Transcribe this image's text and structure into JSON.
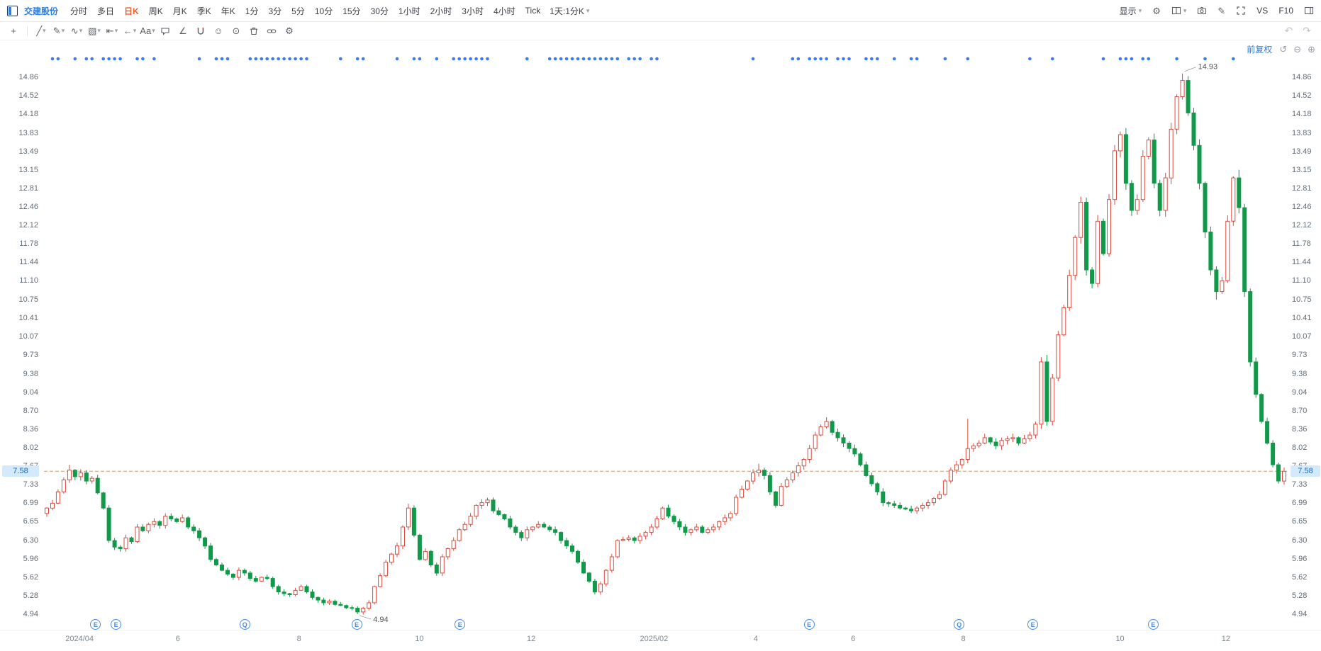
{
  "header": {
    "stock_name": "交建股份",
    "periods": [
      "分时",
      "多日",
      "日K",
      "周K",
      "月K",
      "季K",
      "年K",
      "1分",
      "3分",
      "5分",
      "10分",
      "15分",
      "30分",
      "1小时",
      "2小时",
      "3小时",
      "4小时",
      "Tick"
    ],
    "active_period": "日K",
    "compound_period": "1天:1分K",
    "right_items": [
      {
        "name": "display-dropdown",
        "label": "显示",
        "caret": true
      },
      {
        "name": "settings-icon",
        "glyph": "⚙"
      },
      {
        "name": "layout-icon",
        "glyph": "svg:layout",
        "caret": true
      },
      {
        "name": "screenshot-icon",
        "glyph": "svg:camera"
      },
      {
        "name": "draw-mode-icon",
        "glyph": "✎"
      },
      {
        "name": "fullscreen-icon",
        "glyph": "svg:expand"
      },
      {
        "name": "vs-button",
        "label": "VS"
      },
      {
        "name": "f10-button",
        "label": "F10"
      },
      {
        "name": "panel-toggle-icon",
        "glyph": "svg:panel"
      }
    ]
  },
  "draw_toolbar": {
    "icons": [
      {
        "name": "crosshair-move-tool",
        "glyph": "+"
      },
      {
        "name": "trendline-tool",
        "glyph": "╱",
        "caret": true
      },
      {
        "name": "brush-tool",
        "glyph": "✎",
        "caret": true
      },
      {
        "name": "wave-tool",
        "glyph": "∿",
        "caret": true
      },
      {
        "name": "pattern-tool",
        "glyph": "▧",
        "caret": true
      },
      {
        "name": "measure-tool",
        "glyph": "⇤",
        "caret": true
      },
      {
        "name": "arrow-tool",
        "glyph": "←",
        "caret": true
      },
      {
        "name": "text-tool",
        "glyph": "Aa",
        "caret": true
      },
      {
        "name": "comment-tool",
        "glyph": "svg:bubble"
      },
      {
        "name": "angle-tool",
        "glyph": "∠"
      },
      {
        "name": "magnet-tool",
        "glyph": "svg:magnet"
      },
      {
        "name": "emoji-tool",
        "glyph": "☺"
      },
      {
        "name": "target-tool",
        "glyph": "⊙"
      },
      {
        "name": "delete-tool",
        "glyph": "svg:trash"
      },
      {
        "name": "link-tool",
        "glyph": "svg:link"
      },
      {
        "name": "drawing-settings-tool",
        "glyph": "⚙"
      }
    ],
    "undo_glyph": "↶",
    "redo_glyph": "↷"
  },
  "chart": {
    "adjust_label": "前复权",
    "corner_icons": [
      {
        "name": "reset-view-icon",
        "glyph": "↺"
      },
      {
        "name": "zoom-out-icon",
        "glyph": "⊖"
      },
      {
        "name": "zoom-in-icon",
        "glyph": "⊕"
      }
    ],
    "colors": {
      "up": "#dd4b3e",
      "down": "#0f9948",
      "price_line": "#ff8d1e",
      "event_dot": "#3b7df0",
      "badge_bg": "#d3e9fc",
      "badge_text": "#1a66b5",
      "accent_blue": "#2e7de0",
      "active_tab": "#f25a2b",
      "annotation_text": "#555555"
    }
  },
  "chart_data": {
    "type": "candlestick",
    "title": "交建股份 日K (前复权)",
    "current_price": "7.58",
    "y_range": {
      "top_tick": 14.86,
      "bottom_tick": 4.94
    },
    "price_axis_ticks": [
      "14.86",
      "14.52",
      "14.18",
      "13.83",
      "13.49",
      "13.15",
      "12.81",
      "12.46",
      "12.12",
      "11.78",
      "11.44",
      "11.10",
      "10.75",
      "10.41",
      "10.07",
      "9.73",
      "9.38",
      "9.04",
      "8.70",
      "8.36",
      "8.02",
      "7.67",
      "7.33",
      "6.99",
      "6.65",
      "6.30",
      "5.96",
      "5.62",
      "5.28",
      "4.94"
    ],
    "time_axis_labels": [
      {
        "f": 0.0286,
        "text": "2024/04"
      },
      {
        "f": 0.1077,
        "text": "6"
      },
      {
        "f": 0.2052,
        "text": "8"
      },
      {
        "f": 0.302,
        "text": "10"
      },
      {
        "f": 0.392,
        "text": "12"
      },
      {
        "f": 0.4908,
        "text": "2025/02"
      },
      {
        "f": 0.5726,
        "text": "4"
      },
      {
        "f": 0.651,
        "text": "6"
      },
      {
        "f": 0.7396,
        "text": "8"
      },
      {
        "f": 0.8657,
        "text": "10"
      },
      {
        "f": 0.9509,
        "text": "12"
      }
    ],
    "first_open": 6.8,
    "closes": [
      6.9,
      6.99,
      7.2,
      7.42,
      7.6,
      7.48,
      7.55,
      7.4,
      7.45,
      7.18,
      6.9,
      6.3,
      6.18,
      6.15,
      6.35,
      6.28,
      6.55,
      6.48,
      6.6,
      6.65,
      6.58,
      6.75,
      6.7,
      6.65,
      6.72,
      6.55,
      6.48,
      6.35,
      6.2,
      5.95,
      5.85,
      5.75,
      5.68,
      5.62,
      5.75,
      5.7,
      5.6,
      5.55,
      5.62,
      5.6,
      5.45,
      5.35,
      5.32,
      5.3,
      5.38,
      5.45,
      5.35,
      5.25,
      5.2,
      5.15,
      5.18,
      5.12,
      5.1,
      5.06,
      5.05,
      4.98,
      5.05,
      5.15,
      5.45,
      5.65,
      5.9,
      6.05,
      6.2,
      6.55,
      6.9,
      6.4,
      5.95,
      6.1,
      5.85,
      5.7,
      6.0,
      6.15,
      6.3,
      6.5,
      6.6,
      6.75,
      6.95,
      7.0,
      7.05,
      6.85,
      6.78,
      6.7,
      6.55,
      6.45,
      6.35,
      6.5,
      6.55,
      6.6,
      6.55,
      6.5,
      6.45,
      6.3,
      6.2,
      6.1,
      5.9,
      5.7,
      5.55,
      5.35,
      5.5,
      5.75,
      6.0,
      6.3,
      6.32,
      6.35,
      6.3,
      6.38,
      6.45,
      6.55,
      6.7,
      6.9,
      6.75,
      6.65,
      6.55,
      6.45,
      6.5,
      6.55,
      6.45,
      6.5,
      6.55,
      6.65,
      6.72,
      6.8,
      7.1,
      7.25,
      7.4,
      7.55,
      7.6,
      7.5,
      7.2,
      6.95,
      7.3,
      7.42,
      7.55,
      7.68,
      7.8,
      8.0,
      8.25,
      8.4,
      8.5,
      8.3,
      8.2,
      8.1,
      8.0,
      7.9,
      7.7,
      7.5,
      7.35,
      7.2,
      7.0,
      6.98,
      6.95,
      6.9,
      6.88,
      6.85,
      6.9,
      6.95,
      7.0,
      7.08,
      7.15,
      7.4,
      7.6,
      7.7,
      7.8,
      8.0,
      8.05,
      8.1,
      8.2,
      8.12,
      8.05,
      8.15,
      8.18,
      8.2,
      8.1,
      8.18,
      8.25,
      8.45,
      9.6,
      8.5,
      9.3,
      10.1,
      10.6,
      11.2,
      11.9,
      12.55,
      11.3,
      11.05,
      12.2,
      11.6,
      12.6,
      13.5,
      13.8,
      12.9,
      12.4,
      12.6,
      13.4,
      13.7,
      12.9,
      12.4,
      13.0,
      13.9,
      14.5,
      14.8,
      14.2,
      13.6,
      12.9,
      12.0,
      11.3,
      10.9,
      11.1,
      12.2,
      13.0,
      12.45,
      10.9,
      9.6,
      9.0,
      8.5,
      8.1,
      7.7,
      7.4,
      7.58
    ],
    "special_wicks": {
      "4": {
        "high": 7.7
      },
      "55": {
        "low": 4.94
      },
      "64": {
        "high": 6.98
      },
      "126": {
        "high": 7.72
      },
      "163": {
        "high": 8.55
      },
      "177": {
        "high": 9.73
      },
      "201": {
        "high": 14.93
      },
      "207": {
        "low": 10.75
      },
      "211": {
        "high": 13.15
      },
      "218": {
        "low": 7.35
      }
    },
    "annotations": {
      "high": {
        "index": 201,
        "price": 14.93,
        "label": "14.93"
      },
      "low": {
        "index": 55,
        "price": 4.94,
        "label": "4.94"
      }
    },
    "event_dot_indices": [
      1,
      2,
      5,
      7,
      8,
      10,
      11,
      12,
      13,
      16,
      17,
      19,
      27,
      30,
      31,
      32,
      36,
      37,
      38,
      39,
      40,
      41,
      42,
      43,
      44,
      45,
      46,
      52,
      55,
      56,
      62,
      65,
      66,
      69,
      72,
      73,
      74,
      75,
      76,
      77,
      78,
      85,
      89,
      90,
      91,
      92,
      93,
      94,
      95,
      96,
      97,
      98,
      99,
      100,
      101,
      103,
      104,
      105,
      107,
      108,
      125,
      132,
      133,
      135,
      136,
      137,
      138,
      140,
      141,
      142,
      145,
      146,
      147,
      150,
      153,
      154,
      159,
      163,
      174,
      178,
      187,
      190,
      191,
      192,
      194,
      195,
      200,
      205,
      210
    ],
    "bottom_markers": [
      {
        "f": 0.0416,
        "label": "E"
      },
      {
        "f": 0.058,
        "label": "E"
      },
      {
        "f": 0.1616,
        "label": "Q"
      },
      {
        "f": 0.2516,
        "label": "E"
      },
      {
        "f": 0.3347,
        "label": "E"
      },
      {
        "f": 0.6156,
        "label": "E"
      },
      {
        "f": 0.7363,
        "label": "Q"
      },
      {
        "f": 0.7956,
        "label": "E"
      },
      {
        "f": 0.8924,
        "label": "E"
      }
    ]
  }
}
